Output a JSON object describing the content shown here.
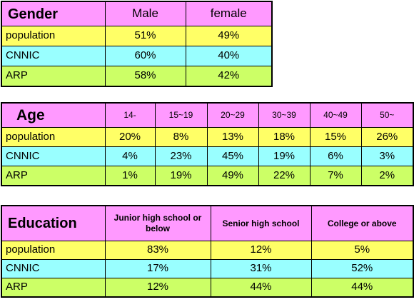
{
  "chart_data": [
    {
      "type": "table",
      "title": "Gender",
      "categories": [
        "Male",
        "female"
      ],
      "series": [
        {
          "name": "population",
          "values": [
            "51%",
            "49%"
          ]
        },
        {
          "name": "CNNIC",
          "values": [
            "60%",
            "40%"
          ]
        },
        {
          "name": "ARP",
          "values": [
            "58%",
            "42%"
          ]
        }
      ],
      "colors": {
        "header": "#ff99ff",
        "rows": [
          "#ffff66",
          "#99ffff",
          "#ccff66"
        ]
      }
    },
    {
      "type": "table",
      "title": "Age",
      "categories": [
        "14-",
        "15~19",
        "20~29",
        "30~39",
        "40~49",
        "50~"
      ],
      "series": [
        {
          "name": "population",
          "values": [
            "20%",
            "8%",
            "13%",
            "18%",
            "15%",
            "26%"
          ]
        },
        {
          "name": "CNNIC",
          "values": [
            "4%",
            "23%",
            "45%",
            "19%",
            "6%",
            "3%"
          ]
        },
        {
          "name": "ARP",
          "values": [
            "1%",
            "19%",
            "49%",
            "22%",
            "7%",
            "2%"
          ]
        }
      ],
      "colors": {
        "header": "#ff99ff",
        "rows": [
          "#ffff66",
          "#99ffff",
          "#ccff66"
        ]
      }
    },
    {
      "type": "table",
      "title": "Education",
      "categories": [
        "Junior high school or below",
        "Senior high school",
        "College or above"
      ],
      "series": [
        {
          "name": "population",
          "values": [
            "83%",
            "12%",
            "5%"
          ]
        },
        {
          "name": "CNNIC",
          "values": [
            "17%",
            "31%",
            "52%"
          ]
        },
        {
          "name": "ARP",
          "values": [
            "12%",
            "44%",
            "44%"
          ]
        }
      ],
      "colors": {
        "header": "#ff99ff",
        "rows": [
          "#ffff66",
          "#99ffff",
          "#ccff66"
        ]
      }
    }
  ]
}
